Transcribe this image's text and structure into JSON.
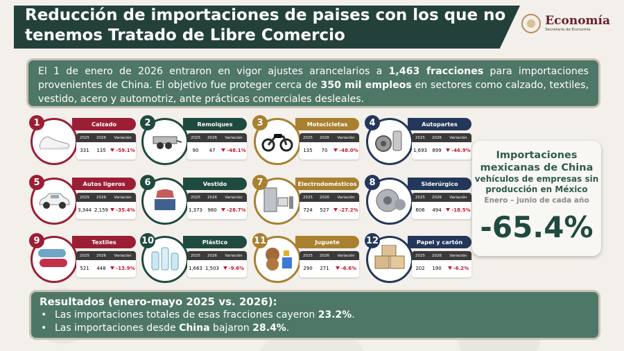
{
  "title": "Reducción de importaciones de paises con los que no tenemos Tratado de Libre Comercio",
  "logo": {
    "main": "Economía",
    "sub": "Secretaría de Economía"
  },
  "intro": {
    "p1": "El 1 de enero de 2026 entraron en vigor ajustes arancelarios a ",
    "b1": "1,463 fracciones",
    "p2": " para importaciones provenientes de China. El objetivo fue proteger cerca de ",
    "b2": "350 mil empleos",
    "p3": " en sectores como calzado, textiles, vestido, acero y automotriz, ante prácticas comerciales desleales."
  },
  "table_headers": {
    "y1": "2025",
    "y2": "2026",
    "var": "Variación"
  },
  "sectors": [
    {
      "n": "1",
      "name": "Calzado",
      "v2025": "331",
      "v2026": "135",
      "var": "-59.1%",
      "icon": "shoes-icon"
    },
    {
      "n": "2",
      "name": "Remolques",
      "v2025": "90",
      "v2026": "47",
      "var": "-48.1%",
      "icon": "trailer-icon"
    },
    {
      "n": "3",
      "name": "Motocicletas",
      "v2025": "135",
      "v2026": "70",
      "var": "-48.0%",
      "icon": "motorcycle-icon"
    },
    {
      "n": "4",
      "name": "Autopartes",
      "v2025": "1,693",
      "v2026": "899",
      "var": "-46.9%",
      "icon": "autoparts-icon"
    },
    {
      "n": "5",
      "name": "Autos ligeros",
      "v2025": "3,344",
      "v2026": "2,159",
      "var": "-35.4%",
      "icon": "car-icon"
    },
    {
      "n": "6",
      "name": "Vestido",
      "v2025": "1,373",
      "v2026": "980",
      "var": "-28.7%",
      "icon": "clothes-icon"
    },
    {
      "n": "7",
      "name": "Electrodomésticos",
      "v2025": "724",
      "v2026": "527",
      "var": "-27.2%",
      "icon": "appliances-icon"
    },
    {
      "n": "8",
      "name": "Siderúrgico",
      "v2025": "606",
      "v2026": "494",
      "var": "-18.5%",
      "icon": "steel-coil-icon"
    },
    {
      "n": "9",
      "name": "Textiles",
      "v2025": "521",
      "v2026": "448",
      "var": "-13.9%",
      "icon": "textile-rolls-icon"
    },
    {
      "n": "10",
      "name": "Plástico",
      "v2025": "1,663",
      "v2026": "1,503",
      "var": "-9.6%",
      "icon": "plastic-bottles-icon"
    },
    {
      "n": "11",
      "name": "Juguete",
      "v2025": "290",
      "v2026": "271",
      "var": "-6.6%",
      "icon": "toys-icon"
    },
    {
      "n": "12",
      "name": "Papel y cartón",
      "v2025": "202",
      "v2026": "190",
      "var": "-6.2%",
      "icon": "boxes-icon"
    }
  ],
  "side": {
    "t1": "Importaciones mexicanas de China",
    "t2": "vehículos de empresas sin producción en México",
    "t3": "Enero – junio de cada año",
    "big": "-65.4%"
  },
  "results": {
    "title": "Resultados (enero-mayo 2025 vs. 2026):",
    "l1a": "Las importaciones totales de esas fracciones cayeron ",
    "l1b": "23.2%",
    "l1c": ".",
    "l2a": "Las importaciones desde ",
    "l2b": "China",
    "l2c": " bajaron ",
    "l2d": "28.4%",
    "l2e": "."
  },
  "colors": {
    "dark_green": "#23413a",
    "mid_green": "#4e7768",
    "guinda": "#9a1f35",
    "gold": "#a8802f",
    "navy": "#23375a",
    "red": "#c0182a"
  }
}
